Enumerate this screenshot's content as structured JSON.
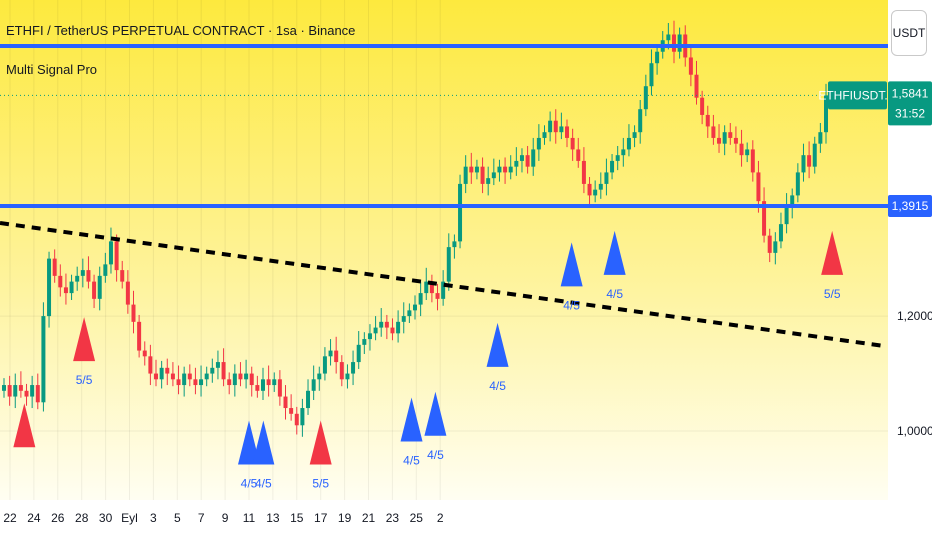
{
  "header": {
    "title": "ETHFI / TetherUS PERPETUAL CONTRACT · 1sa · Binance",
    "indicator": "Multi Signal Pro",
    "unit_button": "USDT"
  },
  "colors": {
    "bg_top": "#fde93e",
    "bg_bottom": "#fffef2",
    "candle_up": "#089981",
    "candle_down": "#f23645",
    "level_line": "#2962ff",
    "trend_line": "#000000",
    "bull_signal": "#2962ff",
    "bear_signal": "#f23645",
    "price_tag": "#089981"
  },
  "chart_data": {
    "type": "candlestick",
    "x_tick_labels": [
      "22",
      "24",
      "26",
      "28",
      "30",
      "Eyl",
      "3",
      "5",
      "7",
      "9",
      "11",
      "13",
      "15",
      "17",
      "19",
      "21",
      "23",
      "25",
      "2"
    ],
    "y_tick_labels": [
      "1,0000",
      "1,2000"
    ],
    "y_range": [
      0.88,
      1.75
    ],
    "last_price": {
      "symbol": "ETHFIUSDT.P",
      "value": "1,5841",
      "countdown": "31:52",
      "y": 1.5841
    },
    "levels": [
      {
        "label": "",
        "y": 1.67
      },
      {
        "label": "1,3915",
        "y": 1.3915
      }
    ],
    "trend_line": {
      "start_y": 1.362,
      "end_y": 1.148
    },
    "series": [
      {
        "values": [
          1.08,
          1.06,
          1.08,
          1.07,
          1.06,
          1.08,
          1.05,
          1.2,
          1.3,
          1.27,
          1.25,
          1.24,
          1.26,
          1.27,
          1.28,
          1.26,
          1.23,
          1.27,
          1.29,
          1.33,
          1.28,
          1.26,
          1.22,
          1.19,
          1.14,
          1.13,
          1.1,
          1.09,
          1.11,
          1.1,
          1.09,
          1.08,
          1.1,
          1.09,
          1.08,
          1.09,
          1.1,
          1.11,
          1.12,
          1.09,
          1.08,
          1.1,
          1.09,
          1.1,
          1.08,
          1.07,
          1.09,
          1.08,
          1.09,
          1.06,
          1.04,
          1.03,
          1.01,
          1.04,
          1.07,
          1.09,
          1.1,
          1.13,
          1.14,
          1.12,
          1.09,
          1.1,
          1.12,
          1.15,
          1.16,
          1.17,
          1.18,
          1.19,
          1.18,
          1.17,
          1.19,
          1.2,
          1.21,
          1.22,
          1.24,
          1.26,
          1.24,
          1.23,
          1.26,
          1.32,
          1.33,
          1.43,
          1.46,
          1.45,
          1.46,
          1.43,
          1.44,
          1.45,
          1.46,
          1.45,
          1.46,
          1.47,
          1.48,
          1.46,
          1.49,
          1.51,
          1.52,
          1.54,
          1.52,
          1.53,
          1.51,
          1.49,
          1.47,
          1.43,
          1.41,
          1.42,
          1.43,
          1.45,
          1.47,
          1.48,
          1.49,
          1.51,
          1.52,
          1.56,
          1.6,
          1.64,
          1.66,
          1.68,
          1.69,
          1.66,
          1.69,
          1.65,
          1.62,
          1.58,
          1.55,
          1.53,
          1.51,
          1.5,
          1.52,
          1.51,
          1.5,
          1.48,
          1.49,
          1.45,
          1.4,
          1.34,
          1.31,
          1.33,
          1.36,
          1.39,
          1.41,
          1.45,
          1.48,
          1.46,
          1.5,
          1.52,
          1.5841
        ]
      }
    ],
    "signals": [
      {
        "type": "bear",
        "x": 0.6,
        "y": 1.01,
        "label": ""
      },
      {
        "type": "bear",
        "x": 3.1,
        "y": 1.16,
        "label": "5/5"
      },
      {
        "type": "bull",
        "x": 10.0,
        "y": 0.98,
        "label": "4/5"
      },
      {
        "type": "bull",
        "x": 10.6,
        "y": 0.98,
        "label": "4/5"
      },
      {
        "type": "bear",
        "x": 13.0,
        "y": 0.98,
        "label": "5/5"
      },
      {
        "type": "bull",
        "x": 16.8,
        "y": 1.02,
        "label": "4/5"
      },
      {
        "type": "bull",
        "x": 17.8,
        "y": 1.03,
        "label": "4/5"
      },
      {
        "type": "bull",
        "x": 20.4,
        "y": 1.15,
        "label": "4/5"
      },
      {
        "type": "bull",
        "x": 23.5,
        "y": 1.29,
        "label": "4/5"
      },
      {
        "type": "bull",
        "x": 25.3,
        "y": 1.31,
        "label": "4/5"
      },
      {
        "type": "bear",
        "x": 34.4,
        "y": 1.31,
        "label": "5/5"
      }
    ]
  }
}
